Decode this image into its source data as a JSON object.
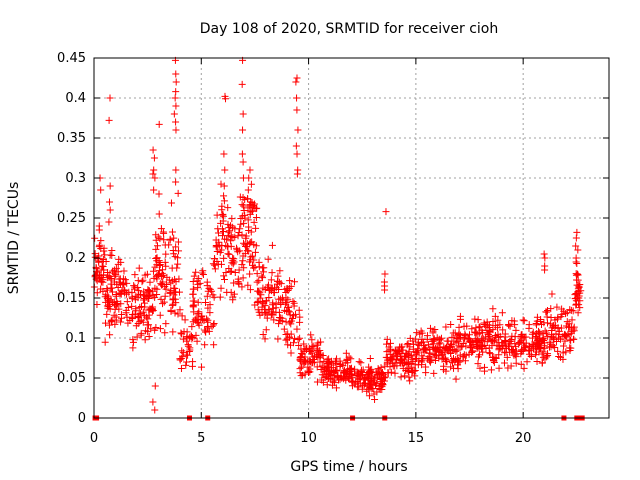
{
  "chart_data": {
    "type": "scatter",
    "title": "Day 108 of 2020, SRMTID for receiver cioh",
    "xlabel": "GPS time / hours",
    "ylabel": "SRMTID / TECUs",
    "xlim": [
      0,
      24
    ],
    "ylim": [
      0,
      0.45
    ],
    "xticks": [
      0,
      5,
      10,
      15,
      20
    ],
    "xtick_labels": [
      "0",
      "5",
      "10",
      "15",
      "20"
    ],
    "yticks": [
      0,
      0.05,
      0.1,
      0.15,
      0.2,
      0.25,
      0.3,
      0.35,
      0.4,
      0.45
    ],
    "ytick_labels": [
      "0",
      "0.05",
      "0.1",
      "0.15",
      "0.2",
      "0.25",
      "0.3",
      "0.35",
      "0.4",
      "0.45"
    ],
    "grid": true,
    "marker": "+",
    "marker_color": "#ff0000",
    "baseline_markers": {
      "description": "points plotted at zero",
      "x": [
        0.05,
        0.12,
        4.45,
        5.3,
        12.05,
        13.55,
        21.9,
        22.5,
        22.62,
        22.75
      ]
    },
    "series": [
      {
        "name": "SRMTID",
        "color": "#ff0000",
        "segments": [
          {
            "x0": 0.0,
            "x1": 0.5,
            "center": 0.18,
            "spread": 0.045,
            "n": 45
          },
          {
            "x0": 0.5,
            "x1": 1.5,
            "center": 0.16,
            "spread": 0.055,
            "n": 90
          },
          {
            "x0": 1.5,
            "x1": 2.8,
            "center": 0.14,
            "spread": 0.05,
            "n": 100
          },
          {
            "x0": 2.8,
            "x1": 3.2,
            "center": 0.17,
            "spread": 0.07,
            "n": 40
          },
          {
            "x0": 3.2,
            "x1": 4.0,
            "center": 0.18,
            "spread": 0.07,
            "n": 60
          },
          {
            "x0": 4.0,
            "x1": 4.6,
            "center": 0.09,
            "spread": 0.04,
            "n": 35
          },
          {
            "x0": 4.6,
            "x1": 5.6,
            "center": 0.14,
            "spread": 0.05,
            "n": 70
          },
          {
            "x0": 5.6,
            "x1": 6.8,
            "center": 0.21,
            "spread": 0.06,
            "n": 90
          },
          {
            "x0": 6.8,
            "x1": 7.6,
            "center": 0.23,
            "spread": 0.07,
            "n": 70
          },
          {
            "x0": 7.6,
            "x1": 8.8,
            "center": 0.15,
            "spread": 0.05,
            "n": 90
          },
          {
            "x0": 8.8,
            "x1": 9.6,
            "center": 0.13,
            "spread": 0.05,
            "n": 50
          },
          {
            "x0": 9.6,
            "x1": 10.6,
            "center": 0.075,
            "spread": 0.025,
            "n": 70
          },
          {
            "x0": 10.6,
            "x1": 12.0,
            "center": 0.06,
            "spread": 0.02,
            "n": 100
          },
          {
            "x0": 12.0,
            "x1": 13.6,
            "center": 0.05,
            "spread": 0.02,
            "n": 110
          },
          {
            "x0": 13.6,
            "x1": 15.0,
            "center": 0.075,
            "spread": 0.025,
            "n": 100
          },
          {
            "x0": 15.0,
            "x1": 17.0,
            "center": 0.085,
            "spread": 0.025,
            "n": 140
          },
          {
            "x0": 17.0,
            "x1": 19.0,
            "center": 0.095,
            "spread": 0.03,
            "n": 140
          },
          {
            "x0": 19.0,
            "x1": 21.0,
            "center": 0.095,
            "spread": 0.03,
            "n": 140
          },
          {
            "x0": 21.0,
            "x1": 22.4,
            "center": 0.11,
            "spread": 0.035,
            "n": 90
          },
          {
            "x0": 22.4,
            "x1": 22.7,
            "center": 0.16,
            "spread": 0.04,
            "n": 30
          }
        ],
        "peaks": [
          {
            "x": 0.75,
            "y": [
              0.4,
              0.372,
              0.29,
              0.27,
              0.26,
              0.245
            ]
          },
          {
            "x": 0.3,
            "y": [
              0.3,
              0.285,
              0.24,
              0.235
            ]
          },
          {
            "x": 2.8,
            "y": [
              0.335,
              0.325,
              0.31,
              0.305,
              0.3,
              0.285,
              0.04,
              0.02,
              0.01
            ]
          },
          {
            "x": 3.05,
            "y": [
              0.367,
              0.28,
              0.255
            ]
          },
          {
            "x": 3.8,
            "y": [
              0.447,
              0.43,
              0.42,
              0.408,
              0.4,
              0.39,
              0.38,
              0.37,
              0.36,
              0.31,
              0.295
            ]
          },
          {
            "x": 6.1,
            "y": [
              0.402,
              0.399,
              0.33,
              0.31,
              0.29
            ]
          },
          {
            "x": 6.95,
            "y": [
              0.447,
              0.417,
              0.38,
              0.36,
              0.33,
              0.32,
              0.3
            ]
          },
          {
            "x": 7.25,
            "y": [
              0.31,
              0.3,
              0.285,
              0.27
            ]
          },
          {
            "x": 9.45,
            "y": [
              0.425,
              0.42,
              0.4,
              0.385,
              0.36,
              0.34,
              0.33,
              0.31,
              0.305
            ]
          },
          {
            "x": 13.55,
            "y": [
              0.258,
              0.18,
              0.17,
              0.165,
              0.16
            ]
          },
          {
            "x": 20.95,
            "y": [
              0.205,
              0.2,
              0.19,
              0.185
            ]
          },
          {
            "x": 22.5,
            "y": [
              0.232,
              0.225,
              0.215,
              0.21,
              0.2,
              0.195
            ]
          }
        ]
      }
    ]
  }
}
